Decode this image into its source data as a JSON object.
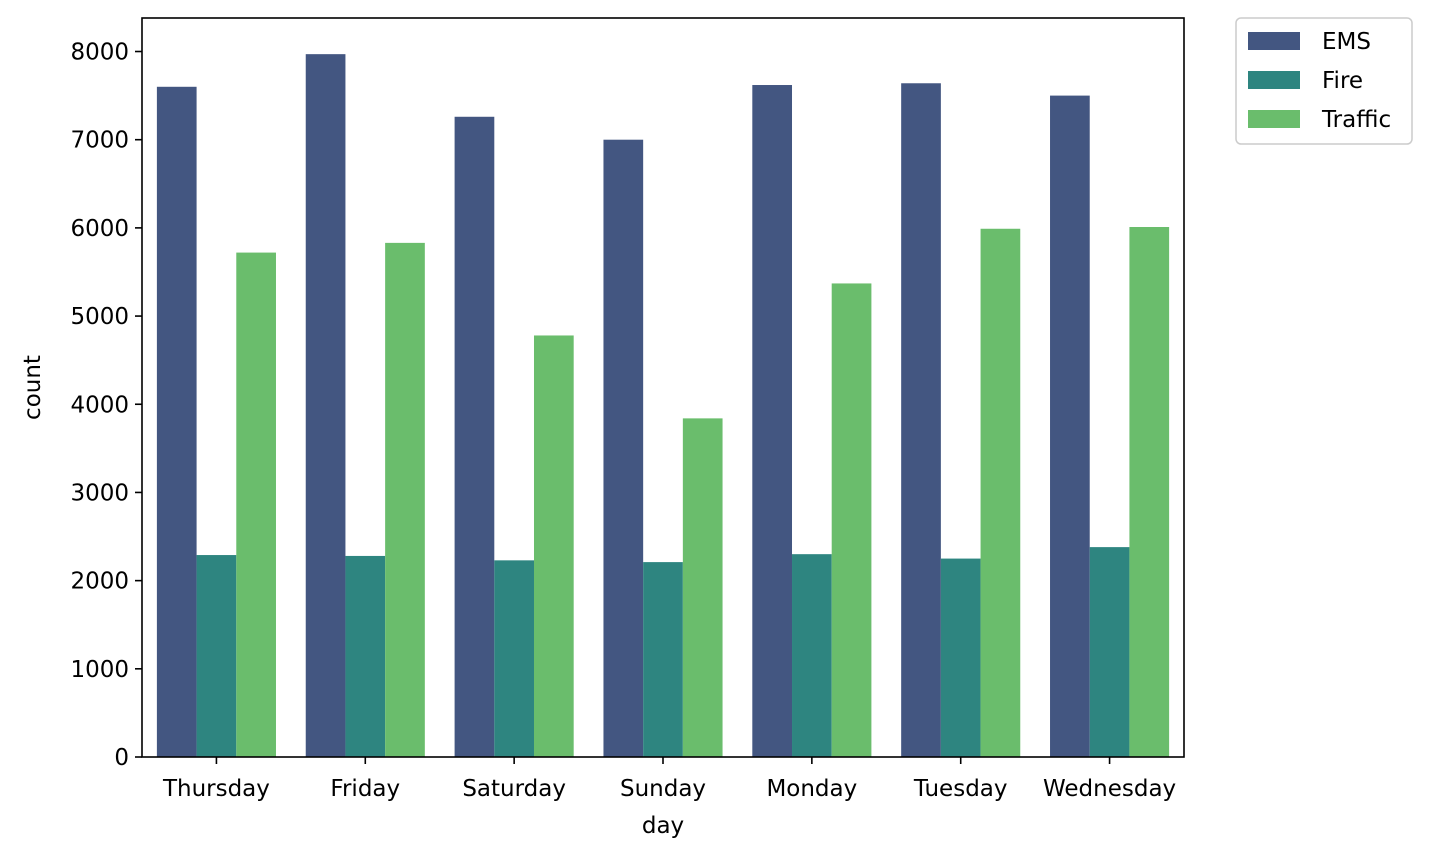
{
  "chart_data": {
    "type": "bar",
    "title": "",
    "xlabel": "day",
    "ylabel": "count",
    "categories": [
      "Thursday",
      "Friday",
      "Saturday",
      "Sunday",
      "Monday",
      "Tuesday",
      "Wednesday"
    ],
    "series": [
      {
        "name": "EMS",
        "color": "#435681",
        "values": [
          7600,
          7970,
          7260,
          7000,
          7620,
          7640,
          7500
        ]
      },
      {
        "name": "Fire",
        "color": "#2e8580",
        "values": [
          2290,
          2280,
          2230,
          2210,
          2300,
          2250,
          2380
        ]
      },
      {
        "name": "Traffic",
        "color": "#6abd6c",
        "values": [
          5720,
          5830,
          4780,
          3840,
          5370,
          5990,
          6010
        ]
      }
    ],
    "ylim": [
      0,
      8380
    ],
    "yticks": [
      0,
      1000,
      2000,
      3000,
      4000,
      5000,
      6000,
      7000,
      8000
    ],
    "grid": false,
    "legend_position": "outside-top-right"
  }
}
